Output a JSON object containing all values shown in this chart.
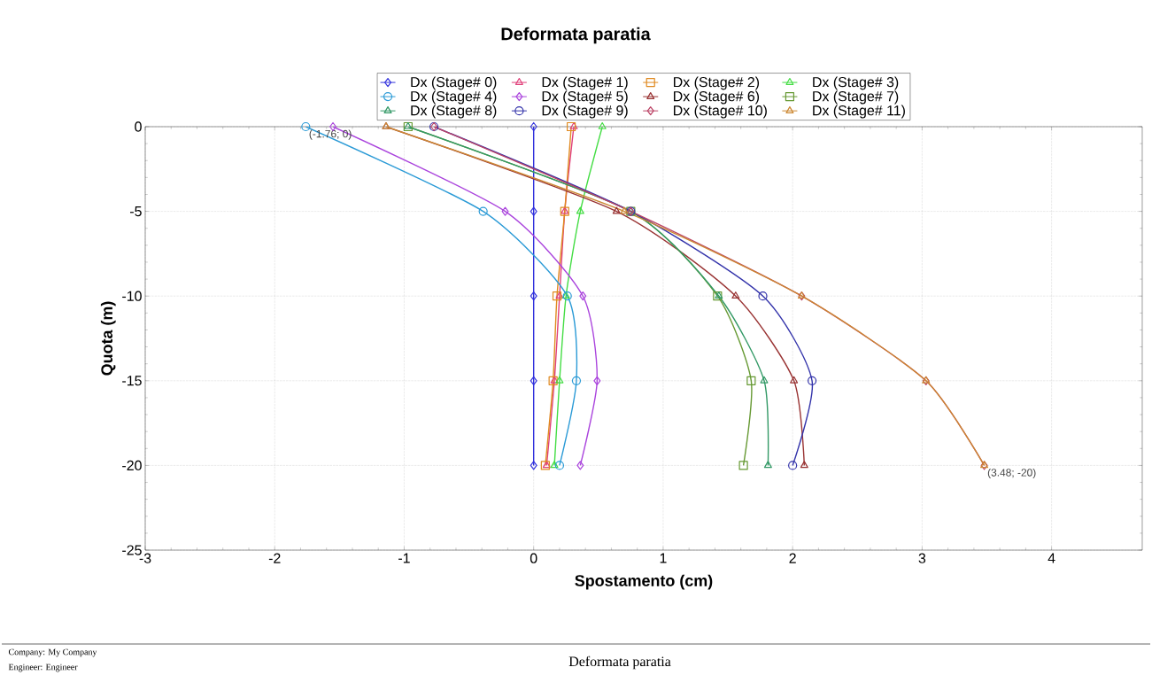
{
  "chart_data": {
    "type": "line",
    "title": "Deformata paratia",
    "xlabel": "Spostamento (cm)",
    "ylabel": "Quota (m)",
    "xlim": [
      -3,
      4.7
    ],
    "ylim": [
      -25,
      0
    ],
    "xticks": [
      -3,
      -2,
      -1,
      0,
      1,
      2,
      3,
      4
    ],
    "yticks": [
      -25,
      -20,
      -15,
      -10,
      -5,
      0
    ],
    "grid": true,
    "legend": "top",
    "series": [
      {
        "name": "Dx (Stage# 0)",
        "color": "#3333dd",
        "marker": "diamond",
        "x": [
          0,
          0,
          0,
          0,
          0
        ],
        "values": [
          0,
          -5,
          -10,
          -15,
          -20
        ]
      },
      {
        "name": "Dx (Stage# 1)",
        "color": "#e0407a",
        "marker": "triangle",
        "x": [
          0.31,
          0.24,
          0.2,
          0.16,
          0.1
        ],
        "values": [
          0,
          -5,
          -10,
          -15,
          -20
        ]
      },
      {
        "name": "Dx (Stage# 2)",
        "color": "#e08a20",
        "marker": "square",
        "x": [
          0.29,
          0.24,
          0.18,
          0.15,
          0.09
        ],
        "values": [
          0,
          -5,
          -10,
          -15,
          -20
        ]
      },
      {
        "name": "Dx (Stage# 3)",
        "color": "#44dd44",
        "marker": "triangle down",
        "x": [
          0.53,
          0.36,
          0.25,
          0.2,
          0.16
        ],
        "values": [
          0,
          -5,
          -10,
          -15,
          -20
        ]
      },
      {
        "name": "Dx (Stage# 4)",
        "color": "#2a9ad6",
        "marker": "circle",
        "x": [
          -1.76,
          -0.39,
          0.26,
          0.33,
          0.2
        ],
        "values": [
          0,
          -5,
          -10,
          -15,
          -20
        ]
      },
      {
        "name": "Dx (Stage# 5)",
        "color": "#aa44dd",
        "marker": "diamond",
        "x": [
          -1.55,
          -0.22,
          0.38,
          0.49,
          0.36
        ],
        "values": [
          0,
          -5,
          -10,
          -15,
          -20
        ]
      },
      {
        "name": "Dx (Stage# 6)",
        "color": "#993333",
        "marker": "triangle",
        "x": [
          -1.14,
          0.64,
          1.56,
          2.01,
          2.09
        ],
        "values": [
          0,
          -5,
          -10,
          -15,
          -20
        ]
      },
      {
        "name": "Dx (Stage# 7)",
        "color": "#669933",
        "marker": "square",
        "x": [
          -0.97,
          0.75,
          1.42,
          1.68,
          1.62
        ],
        "values": [
          0,
          -5,
          -10,
          -15,
          -20
        ]
      },
      {
        "name": "Dx (Stage# 8)",
        "color": "#339966",
        "marker": "triangle down",
        "x": [
          -0.97,
          0.75,
          1.43,
          1.78,
          1.81
        ],
        "values": [
          0,
          -5,
          -10,
          -15,
          -20
        ]
      },
      {
        "name": "Dx (Stage# 9)",
        "color": "#3333aa",
        "marker": "circle",
        "x": [
          -0.77,
          0.75,
          1.77,
          2.15,
          2.0
        ],
        "values": [
          0,
          -5,
          -10,
          -15,
          -20
        ]
      },
      {
        "name": "Dx (Stage# 10)",
        "color": "#bb4466",
        "marker": "diamond",
        "x": [
          -0.77,
          0.75,
          2.07,
          3.03,
          3.48
        ],
        "values": [
          0,
          -5,
          -10,
          -15,
          -20
        ]
      },
      {
        "name": "Dx (Stage# 11)",
        "color": "#cc8833",
        "marker": "triangle",
        "x": [
          -1.14,
          0.7,
          2.07,
          3.03,
          3.48
        ],
        "values": [
          0,
          -5,
          -10,
          -15,
          -20
        ]
      }
    ],
    "annotations": [
      {
        "text": "(-1.76; 0)",
        "x": -1.76,
        "y": 0
      },
      {
        "text": "(3.48; -20)",
        "x": 3.48,
        "y": -20
      },
      "Company: My Company",
      "Engineer: Engineer",
      "Deformata paratia"
    ]
  }
}
